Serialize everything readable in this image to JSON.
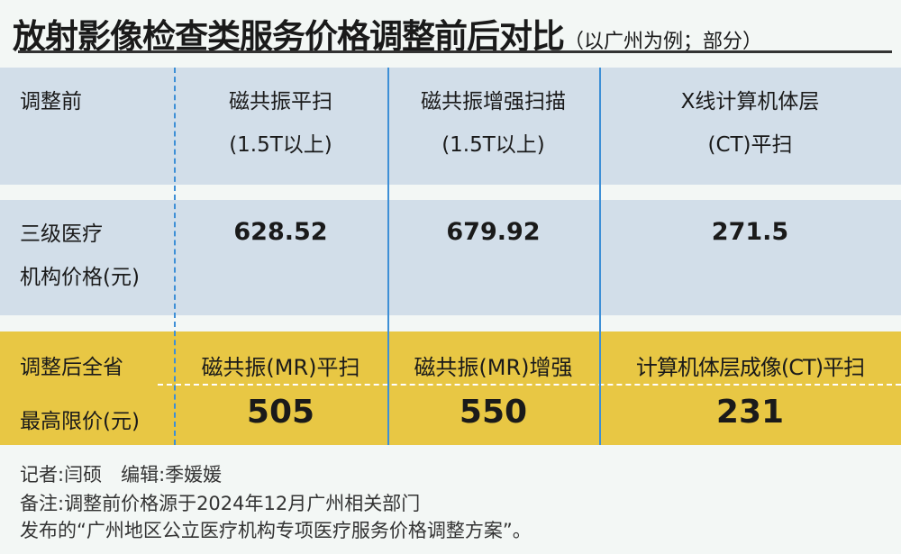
{
  "title": {
    "main": "放射影像检查类服务价格调整前后对比",
    "sub": "（以广州为例；部分）"
  },
  "table": {
    "before_label": "调整前",
    "before_items": [
      {
        "line1": "磁共振平扫",
        "line2": "(1.5T以上)"
      },
      {
        "line1": "磁共振增强扫描",
        "line2": "(1.5T以上)"
      },
      {
        "line1": "X线计算机体层",
        "line2": "(CT)平扫"
      }
    ],
    "price_label": {
      "line1": "三级医疗",
      "line2": "机构价格(元)"
    },
    "prices_before": [
      "628.52",
      "679.92",
      "271.5"
    ],
    "after_label": {
      "line1": "调整后全省",
      "line2": "最高限价(元)"
    },
    "after_items": [
      "磁共振(MR)平扫",
      "磁共振(MR)增强",
      "计算机体层成像(CT)平扫"
    ],
    "prices_after": [
      "505",
      "550",
      "231"
    ]
  },
  "footer": {
    "credits": "记者:闫硕　编辑:季媛媛",
    "note1": "备注:调整前价格源于2024年12月广州相关部门",
    "note2": "发布的“广州地区公立医疗机构专项医疗服务价格调整方案”。"
  },
  "colors": {
    "blue_band": "#d2dee9",
    "yellow_band": "#e8c744",
    "divider": "#3d8fd6"
  }
}
